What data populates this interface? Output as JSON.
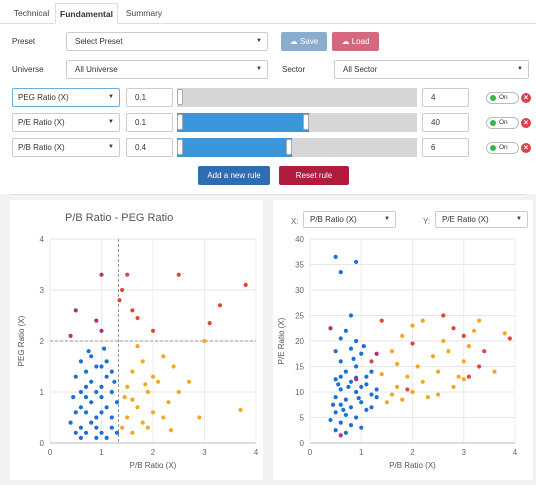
{
  "tabs": [
    "Technical",
    "Fundamental",
    "Summary"
  ],
  "preset": {
    "label": "Preset",
    "value": "Select Preset",
    "save": "Save",
    "load": "Load"
  },
  "universe": {
    "label": "Universe",
    "value": "All Universe"
  },
  "sector": {
    "label": "Sector",
    "value": "All Sector"
  },
  "rules": [
    {
      "field": "PEG Ratio (X)",
      "min": "0.1",
      "max": "4",
      "toggle": "On",
      "range": [
        0.0,
        0.0
      ]
    },
    {
      "field": "P/E Ratio (X)",
      "min": "0.1",
      "max": "40",
      "toggle": "On",
      "range": [
        0.0,
        0.55
      ]
    },
    {
      "field": "P/B Ratio (X)",
      "min": "0.4",
      "max": "6",
      "toggle": "On",
      "range": [
        0.0,
        0.48
      ]
    }
  ],
  "actions": {
    "add": "Add a new rule",
    "reset": "Reset rule"
  },
  "colors": {
    "blue": "#1a6fd8",
    "orange": "#f5a623",
    "red": "#e0453a",
    "purple": "#b0307a",
    "primary": "#2f6db3",
    "danger": "#b01c3c"
  },
  "chart_data": [
    {
      "type": "scatter",
      "title": "P/B Ratio - PEG Ratio",
      "xlabel": "P/B Ratio (X)",
      "ylabel": "PEG Ratio (X)",
      "xlim": [
        0,
        4
      ],
      "ylim": [
        0,
        4
      ],
      "xticks": [
        "0",
        "1",
        "2",
        "3",
        "4"
      ],
      "yticks": [
        "0",
        "1",
        "2",
        "3",
        "4"
      ],
      "guides": {
        "x": 1.33,
        "y": 2.0
      },
      "series": [
        {
          "color": "blue",
          "points": [
            [
              0.5,
              0.2
            ],
            [
              0.6,
              0.3
            ],
            [
              0.7,
              0.2
            ],
            [
              0.8,
              0.4
            ],
            [
              0.9,
              0.3
            ],
            [
              1.0,
              0.2
            ],
            [
              1.1,
              0.1
            ],
            [
              1.2,
              0.3
            ],
            [
              0.5,
              0.6
            ],
            [
              0.6,
              0.7
            ],
            [
              0.7,
              0.6
            ],
            [
              0.8,
              0.8
            ],
            [
              0.9,
              0.5
            ],
            [
              1.0,
              0.6
            ],
            [
              1.1,
              0.7
            ],
            [
              1.2,
              0.5
            ],
            [
              0.6,
              1.0
            ],
            [
              0.7,
              1.1
            ],
            [
              0.8,
              1.2
            ],
            [
              0.9,
              1.0
            ],
            [
              1.0,
              1.1
            ],
            [
              1.1,
              1.3
            ],
            [
              1.2,
              1.0
            ],
            [
              0.7,
              1.4
            ],
            [
              0.9,
              1.5
            ],
            [
              1.1,
              1.6
            ],
            [
              0.5,
              1.3
            ],
            [
              1.0,
              1.5
            ],
            [
              0.8,
              1.7
            ],
            [
              1.2,
              1.4
            ],
            [
              0.4,
              0.4
            ],
            [
              0.6,
              0.1
            ],
            [
              0.9,
              0.1
            ],
            [
              1.3,
              0.2
            ],
            [
              0.7,
              0.9
            ],
            [
              1.0,
              0.9
            ],
            [
              1.3,
              0.8
            ],
            [
              0.6,
              1.6
            ],
            [
              0.75,
              1.8
            ],
            [
              1.05,
              1.85
            ],
            [
              0.45,
              0.9
            ],
            [
              1.25,
              1.2
            ]
          ]
        },
        {
          "color": "orange",
          "points": [
            [
              1.4,
              0.3
            ],
            [
              1.5,
              0.5
            ],
            [
              1.6,
              0.2
            ],
            [
              1.7,
              0.7
            ],
            [
              1.8,
              0.4
            ],
            [
              1.9,
              1.0
            ],
            [
              2.0,
              0.6
            ],
            [
              2.1,
              1.2
            ],
            [
              2.2,
              0.5
            ],
            [
              2.3,
              0.8
            ],
            [
              1.5,
              1.1
            ],
            [
              1.6,
              1.4
            ],
            [
              1.8,
              1.6
            ],
            [
              2.0,
              1.3
            ],
            [
              2.4,
              1.5
            ],
            [
              2.5,
              1.0
            ],
            [
              2.7,
              1.2
            ],
            [
              1.7,
              1.9
            ],
            [
              1.45,
              0.9
            ],
            [
              1.9,
              0.3
            ],
            [
              3.0,
              2.0
            ],
            [
              3.7,
              0.65
            ],
            [
              2.9,
              0.5
            ],
            [
              2.2,
              1.7
            ],
            [
              1.6,
              0.85
            ],
            [
              2.35,
              0.25
            ],
            [
              1.85,
              1.15
            ]
          ]
        },
        {
          "color": "red",
          "points": [
            [
              1.5,
              3.3
            ],
            [
              1.4,
              3.0
            ],
            [
              1.6,
              2.6
            ],
            [
              2.5,
              3.3
            ],
            [
              3.3,
              2.7
            ],
            [
              3.8,
              3.1
            ],
            [
              2.0,
              2.2
            ],
            [
              1.7,
              2.45
            ],
            [
              3.1,
              2.35
            ],
            [
              1.35,
              2.8
            ]
          ]
        },
        {
          "color": "purple",
          "points": [
            [
              1.0,
              3.3
            ],
            [
              0.5,
              2.6
            ],
            [
              0.9,
              2.4
            ],
            [
              0.4,
              2.1
            ],
            [
              1.0,
              2.2
            ]
          ]
        }
      ]
    },
    {
      "type": "scatter",
      "xlabel": "P/B Ratio (X)",
      "ylabel": "P/E Ratio (X)",
      "xsel": {
        "label": "X:",
        "value": "P/B Ratio (X)"
      },
      "ysel": {
        "label": "Y:",
        "value": "P/E Ratio (X)"
      },
      "xlim": [
        0,
        4
      ],
      "ylim": [
        0,
        40
      ],
      "xticks": [
        "0",
        "1",
        "2",
        "3",
        "4"
      ],
      "yticks": [
        "0",
        "5",
        "10",
        "15",
        "20",
        "25",
        "30",
        "35",
        "40"
      ],
      "series": [
        {
          "color": "blue",
          "points": [
            [
              0.5,
              36.5
            ],
            [
              0.9,
              35.5
            ],
            [
              0.6,
              33.5
            ],
            [
              0.8,
              25
            ],
            [
              0.7,
              22
            ],
            [
              0.6,
              20.5
            ],
            [
              0.9,
              20
            ],
            [
              0.5,
              18
            ],
            [
              0.8,
              18.5
            ],
            [
              1.0,
              17.5
            ],
            [
              0.6,
              16
            ],
            [
              0.9,
              15
            ],
            [
              0.7,
              14
            ],
            [
              1.1,
              13
            ],
            [
              0.5,
              12.5
            ],
            [
              0.8,
              12
            ],
            [
              1.0,
              11
            ],
            [
              0.6,
              10.5
            ],
            [
              0.9,
              10
            ],
            [
              1.2,
              9.5
            ],
            [
              0.5,
              9
            ],
            [
              0.7,
              8.5
            ],
            [
              1.0,
              8
            ],
            [
              0.6,
              7.5
            ],
            [
              0.8,
              7
            ],
            [
              1.1,
              6.5
            ],
            [
              0.5,
              6
            ],
            [
              0.7,
              5.5
            ],
            [
              0.9,
              5
            ],
            [
              0.4,
              4.5
            ],
            [
              0.6,
              4
            ],
            [
              0.8,
              3.5
            ],
            [
              1.0,
              3
            ],
            [
              0.5,
              2.5
            ],
            [
              0.7,
              2
            ],
            [
              1.2,
              7
            ],
            [
              1.3,
              9
            ],
            [
              1.1,
              11.5
            ],
            [
              0.9,
              12.8
            ],
            [
              1.2,
              14
            ],
            [
              0.6,
              13
            ],
            [
              0.75,
              11
            ],
            [
              0.85,
              16.5
            ],
            [
              1.05,
              19
            ],
            [
              1.3,
              10.5
            ],
            [
              0.45,
              7.5
            ],
            [
              0.55,
              11.5
            ],
            [
              0.65,
              6.5
            ],
            [
              0.95,
              8.8
            ]
          ]
        },
        {
          "color": "orange",
          "points": [
            [
              1.5,
              8
            ],
            [
              1.6,
              9.5
            ],
            [
              1.7,
              11
            ],
            [
              1.8,
              8.5
            ],
            [
              1.9,
              13
            ],
            [
              2.0,
              10
            ],
            [
              2.1,
              15
            ],
            [
              2.2,
              12
            ],
            [
              2.3,
              9
            ],
            [
              2.4,
              17
            ],
            [
              2.5,
              14
            ],
            [
              2.6,
              20
            ],
            [
              2.7,
              18
            ],
            [
              2.8,
              11
            ],
            [
              2.9,
              13
            ],
            [
              3.0,
              16
            ],
            [
              3.1,
              19
            ],
            [
              3.2,
              22
            ],
            [
              3.3,
              24
            ],
            [
              3.6,
              14
            ],
            [
              3.8,
              21.5
            ],
            [
              1.6,
              18
            ],
            [
              1.8,
              21
            ],
            [
              2.0,
              23
            ],
            [
              2.2,
              24
            ],
            [
              1.4,
              13.5
            ],
            [
              2.5,
              9.5
            ],
            [
              3.0,
              12.5
            ],
            [
              1.7,
              15.5
            ]
          ]
        },
        {
          "color": "red",
          "points": [
            [
              1.2,
              16
            ],
            [
              2.0,
              19.5
            ],
            [
              3.1,
              13
            ],
            [
              3.3,
              15
            ],
            [
              3.4,
              18
            ],
            [
              3.9,
              20.5
            ],
            [
              1.4,
              24
            ],
            [
              2.6,
              25
            ],
            [
              1.9,
              10.5
            ],
            [
              2.8,
              22.5
            ],
            [
              3.0,
              21
            ]
          ]
        },
        {
          "color": "purple",
          "points": [
            [
              0.4,
              22.5
            ],
            [
              1.3,
              17.5
            ],
            [
              0.9,
              12.5
            ],
            [
              0.6,
              1.5
            ]
          ]
        }
      ]
    }
  ]
}
